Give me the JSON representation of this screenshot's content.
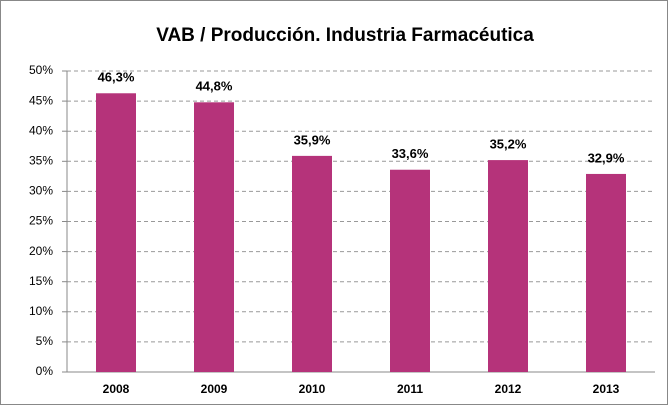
{
  "chart_data": {
    "type": "bar",
    "title": "VAB / Producción. Industria Farmacéutica",
    "categories": [
      "2008",
      "2009",
      "2010",
      "2011",
      "2012",
      "2013"
    ],
    "values": [
      46.3,
      44.8,
      35.9,
      33.6,
      35.2,
      32.9
    ],
    "value_labels": [
      "46,3%",
      "44,8%",
      "35,9%",
      "33,6%",
      "35,2%",
      "32,9%"
    ],
    "color": "#b5337a",
    "ylim": [
      0,
      50
    ],
    "yticks": [
      {
        "value": 0,
        "label": "0%"
      },
      {
        "value": 5,
        "label": "5%"
      },
      {
        "value": 10,
        "label": "10%"
      },
      {
        "value": 15,
        "label": "15%"
      },
      {
        "value": 20,
        "label": "20%"
      },
      {
        "value": 25,
        "label": "25%"
      },
      {
        "value": 30,
        "label": "30%"
      },
      {
        "value": 35,
        "label": "35%"
      },
      {
        "value": 40,
        "label": "40%"
      },
      {
        "value": 45,
        "label": "45%"
      },
      {
        "value": 50,
        "label": "50%"
      }
    ],
    "grid": true
  }
}
